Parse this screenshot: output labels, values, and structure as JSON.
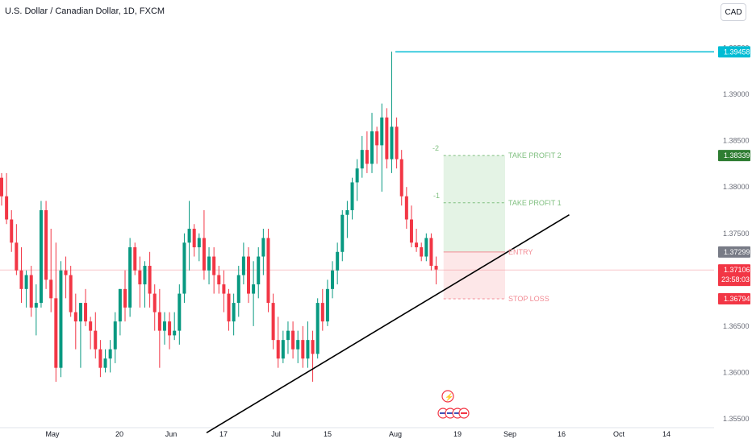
{
  "header": {
    "symbol_title": "U.S. Dollar / Canadian Dollar, 1D, FXCM",
    "currency_button": "CAD"
  },
  "colors": {
    "up": "#089981",
    "down": "#f23645",
    "cyan_line": "#00bcd4",
    "trendline": "#000000",
    "profit_zone": "rgba(76,175,80,0.15)",
    "loss_zone": "rgba(242,54,69,0.12)"
  },
  "chart_data": {
    "type": "candlestick",
    "title": "U.S. Dollar / Canadian Dollar, 1D, FXCM",
    "ylim": [
      1.355,
      1.396
    ],
    "price_axis_ticks": [
      "1.39500",
      "1.39000",
      "1.38500",
      "1.38000",
      "1.37500",
      "1.37000",
      "1.36500",
      "1.36000",
      "1.35500"
    ],
    "time_axis_labels": [
      "May",
      "20",
      "Jun",
      "17",
      "Jul",
      "15",
      "Aug",
      "19",
      "Sep",
      "16",
      "Oct",
      "14"
    ],
    "price_labels": {
      "cyan_level": "1.39458",
      "take_profit_2": "1.38339",
      "entry": "1.37299",
      "current_price": "1.37106",
      "countdown": "23:58:03",
      "stop_loss": "1.36794"
    },
    "annotations": {
      "take_profit_2": "TAKE PROFIT 2",
      "take_profit_1": "TAKE PROFIT 1",
      "entry": "ENTRY",
      "stop_loss": "STOP LOSS",
      "marker_tp2": "-2",
      "marker_tp1": "-1"
    },
    "levels": {
      "cyan": 1.39458,
      "take_profit_2": 1.38339,
      "take_profit_1": 1.3783,
      "entry": 1.37299,
      "current": 1.37106,
      "stop_loss": 1.36794
    },
    "trendline": [
      [
        0,
        1.3535
      ],
      [
        104,
        1.377
      ]
    ],
    "candles": [
      [
        1.381,
        1.3815,
        1.378,
        1.379
      ],
      [
        1.379,
        1.3815,
        1.376,
        1.3765
      ],
      [
        1.3765,
        1.3775,
        1.373,
        1.374
      ],
      [
        1.374,
        1.376,
        1.3705,
        1.371
      ],
      [
        1.371,
        1.3735,
        1.3675,
        1.369
      ],
      [
        1.369,
        1.371,
        1.367,
        1.3705
      ],
      [
        1.3705,
        1.3715,
        1.366,
        1.367
      ],
      [
        1.367,
        1.3695,
        1.364,
        1.3675
      ],
      [
        1.3675,
        1.3785,
        1.367,
        1.3775
      ],
      [
        1.3775,
        1.3785,
        1.369,
        1.37
      ],
      [
        1.37,
        1.3755,
        1.3665,
        1.368
      ],
      [
        1.368,
        1.374,
        1.359,
        1.3605
      ],
      [
        1.3605,
        1.372,
        1.3595,
        1.371
      ],
      [
        1.371,
        1.3725,
        1.368,
        1.3705
      ],
      [
        1.3705,
        1.3715,
        1.366,
        1.3665
      ],
      [
        1.3665,
        1.3685,
        1.3625,
        1.3655
      ],
      [
        1.3655,
        1.3675,
        1.3605,
        1.3675
      ],
      [
        1.3675,
        1.369,
        1.365,
        1.3655
      ],
      [
        1.3655,
        1.366,
        1.3625,
        1.3645
      ],
      [
        1.3645,
        1.3665,
        1.3615,
        1.3625
      ],
      [
        1.3625,
        1.3635,
        1.3595,
        1.3605
      ],
      [
        1.3605,
        1.3625,
        1.36,
        1.3615
      ],
      [
        1.3615,
        1.3635,
        1.36,
        1.3625
      ],
      [
        1.3625,
        1.3665,
        1.361,
        1.3655
      ],
      [
        1.3655,
        1.369,
        1.364,
        1.369
      ],
      [
        1.369,
        1.371,
        1.3655,
        1.367
      ],
      [
        1.367,
        1.3745,
        1.366,
        1.3735
      ],
      [
        1.3735,
        1.374,
        1.3705,
        1.371
      ],
      [
        1.371,
        1.3725,
        1.367,
        1.3695
      ],
      [
        1.3695,
        1.372,
        1.367,
        1.3715
      ],
      [
        1.3715,
        1.373,
        1.367,
        1.3685
      ],
      [
        1.3685,
        1.3695,
        1.3645,
        1.3665
      ],
      [
        1.3665,
        1.369,
        1.3605,
        1.3645
      ],
      [
        1.3645,
        1.3665,
        1.363,
        1.3655
      ],
      [
        1.3655,
        1.3665,
        1.3625,
        1.364
      ],
      [
        1.364,
        1.3665,
        1.3635,
        1.3645
      ],
      [
        1.3645,
        1.3695,
        1.363,
        1.3685
      ],
      [
        1.3685,
        1.375,
        1.3675,
        1.374
      ],
      [
        1.374,
        1.3785,
        1.371,
        1.3755
      ],
      [
        1.3755,
        1.376,
        1.3725,
        1.3735
      ],
      [
        1.3735,
        1.375,
        1.372,
        1.3745
      ],
      [
        1.3745,
        1.3775,
        1.37,
        1.371
      ],
      [
        1.371,
        1.3735,
        1.3695,
        1.3725
      ],
      [
        1.3725,
        1.3735,
        1.3685,
        1.3705
      ],
      [
        1.3705,
        1.3715,
        1.3685,
        1.3695
      ],
      [
        1.3695,
        1.371,
        1.3665,
        1.3685
      ],
      [
        1.3685,
        1.369,
        1.3645,
        1.3655
      ],
      [
        1.3655,
        1.3685,
        1.364,
        1.3675
      ],
      [
        1.3675,
        1.3715,
        1.366,
        1.3705
      ],
      [
        1.3705,
        1.374,
        1.3695,
        1.3725
      ],
      [
        1.3725,
        1.3735,
        1.3675,
        1.3685
      ],
      [
        1.3685,
        1.372,
        1.365,
        1.3695
      ],
      [
        1.3695,
        1.3735,
        1.368,
        1.3725
      ],
      [
        1.3725,
        1.3755,
        1.3705,
        1.3745
      ],
      [
        1.3745,
        1.3755,
        1.3665,
        1.3675
      ],
      [
        1.3675,
        1.3685,
        1.3625,
        1.3635
      ],
      [
        1.3635,
        1.366,
        1.3605,
        1.3615
      ],
      [
        1.3615,
        1.3645,
        1.361,
        1.3635
      ],
      [
        1.3635,
        1.3655,
        1.362,
        1.3645
      ],
      [
        1.3645,
        1.3655,
        1.3615,
        1.3625
      ],
      [
        1.3625,
        1.3645,
        1.361,
        1.3635
      ],
      [
        1.3635,
        1.365,
        1.3605,
        1.3615
      ],
      [
        1.3615,
        1.3655,
        1.3605,
        1.3635
      ],
      [
        1.3635,
        1.3645,
        1.359,
        1.362
      ],
      [
        1.362,
        1.368,
        1.3615,
        1.3675
      ],
      [
        1.3675,
        1.369,
        1.3645,
        1.3655
      ],
      [
        1.3655,
        1.37,
        1.365,
        1.369
      ],
      [
        1.369,
        1.372,
        1.368,
        1.371
      ],
      [
        1.371,
        1.374,
        1.3695,
        1.373
      ],
      [
        1.373,
        1.3775,
        1.372,
        1.377
      ],
      [
        1.377,
        1.3785,
        1.3745,
        1.3775
      ],
      [
        1.3775,
        1.381,
        1.3765,
        1.3805
      ],
      [
        1.3805,
        1.383,
        1.3785,
        1.382
      ],
      [
        1.382,
        1.3855,
        1.381,
        1.384
      ],
      [
        1.384,
        1.386,
        1.3815,
        1.3825
      ],
      [
        1.3825,
        1.388,
        1.3815,
        1.386
      ],
      [
        1.386,
        1.3865,
        1.3825,
        1.3845
      ],
      [
        1.3845,
        1.389,
        1.3795,
        1.3875
      ],
      [
        1.3875,
        1.3885,
        1.382,
        1.383
      ],
      [
        1.383,
        1.3946,
        1.3815,
        1.3865
      ],
      [
        1.3865,
        1.3875,
        1.382,
        1.383
      ],
      [
        1.383,
        1.384,
        1.378,
        1.379
      ],
      [
        1.379,
        1.38,
        1.3755,
        1.3765
      ],
      [
        1.3765,
        1.378,
        1.3735,
        1.374
      ],
      [
        1.374,
        1.3755,
        1.373,
        1.3735
      ],
      [
        1.3735,
        1.374,
        1.372,
        1.3725
      ],
      [
        1.3725,
        1.375,
        1.372,
        1.3745
      ],
      [
        1.3745,
        1.375,
        1.371,
        1.3715
      ],
      [
        1.3715,
        1.3725,
        1.3695,
        1.3711
      ]
    ]
  }
}
